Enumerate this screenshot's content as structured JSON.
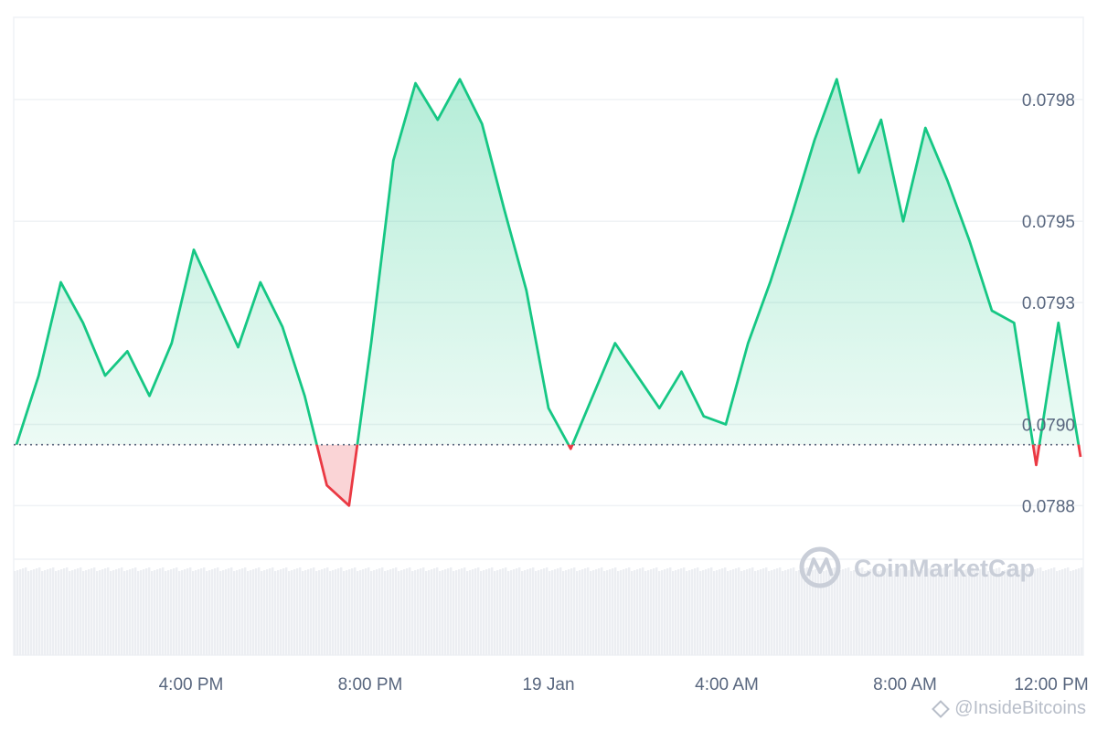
{
  "chart_data": {
    "type": "area",
    "baseline": 0.07895,
    "y_ticks": [
      "0.0788",
      "0.0790",
      "0.0793",
      "0.0795",
      "0.0798"
    ],
    "x_ticks": [
      "4:00 PM",
      "8:00 PM",
      "19 Jan",
      "4:00 AM",
      "8:00 AM",
      "12:00 PM"
    ],
    "ylim": [
      0.07865,
      0.08
    ],
    "grid": true,
    "colors": {
      "up_line": "#16c784",
      "down_line": "#ea3943",
      "baseline": "#58667e",
      "grid": "#eff2f5",
      "volume": "#eceef2"
    },
    "series": [
      {
        "x": [
          0,
          0.5,
          1,
          1.5,
          2,
          2.5,
          3,
          3.5,
          4,
          4.5,
          5,
          5.5,
          6,
          6.5,
          7,
          7.5,
          8,
          8.5,
          9,
          9.5,
          10,
          10.5,
          11,
          11.5,
          12,
          12.5,
          13,
          13.5,
          14,
          14.5,
          15,
          15.5,
          16,
          16.5,
          17,
          17.5,
          18,
          18.5,
          19,
          19.5,
          20,
          20.5,
          21,
          21.5,
          22,
          22.5,
          23,
          23.5,
          24
        ],
        "values": [
          0.07895,
          0.07912,
          0.07935,
          0.07925,
          0.07912,
          0.07918,
          0.07907,
          0.0792,
          0.07943,
          0.07931,
          0.07919,
          0.07935,
          0.07924,
          0.07907,
          0.07885,
          0.0788,
          0.0792,
          0.07965,
          0.07984,
          0.07975,
          0.07985,
          0.07974,
          0.07953,
          0.07933,
          0.07904,
          0.07894,
          0.07907,
          0.0792,
          0.07912,
          0.07904,
          0.07913,
          0.07902,
          0.079,
          0.0792,
          0.07935,
          0.07952,
          0.0797,
          0.07985,
          0.07962,
          0.07975,
          0.0795,
          0.07973,
          0.0796,
          0.07945,
          0.07928,
          0.07925,
          0.0789,
          0.07925,
          0.07892
        ]
      }
    ]
  },
  "watermark": {
    "text": "CoinMarketCap"
  },
  "credit": {
    "text": "@InsideBitcoins"
  }
}
